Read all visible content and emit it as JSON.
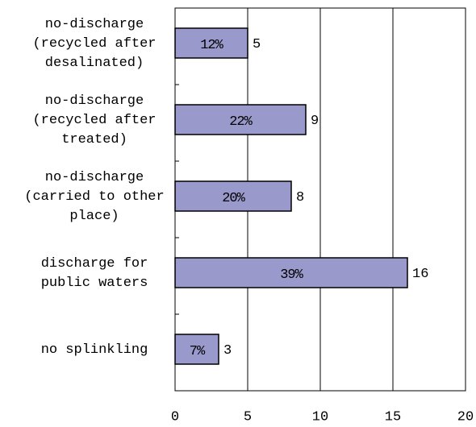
{
  "chart_data": {
    "type": "barh",
    "categories": [
      [
        "no-discharge",
        "(recycled after",
        "desalinated)"
      ],
      [
        "no-discharge",
        "(recycled after",
        "treated)"
      ],
      [
        "no-discharge",
        "(carried to other",
        "place)"
      ],
      [
        "discharge for",
        "public waters"
      ],
      [
        "no splinkling"
      ]
    ],
    "values": [
      5,
      9,
      8,
      16,
      3
    ],
    "percent_labels": [
      "12%",
      "22%",
      "20%",
      "39%",
      "7%"
    ],
    "color": "#9999cc",
    "xlim": [
      0,
      20
    ],
    "xticks": [
      0,
      5,
      10,
      15,
      20
    ],
    "grid": true
  }
}
